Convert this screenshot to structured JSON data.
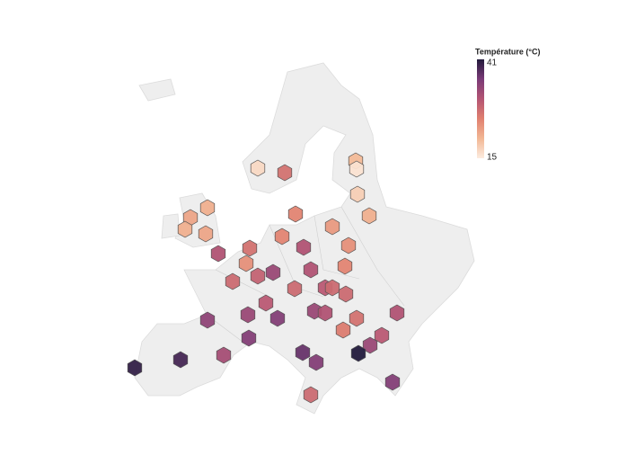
{
  "legend": {
    "title": "Température (°C)",
    "min": 15,
    "max": 41,
    "colors": [
      "#fcece0",
      "#f2b794",
      "#e0806f",
      "#b45473",
      "#7a3a77",
      "#221a3c"
    ]
  },
  "points": {
    "values": [
      17,
      27,
      20,
      16,
      18,
      21,
      21,
      22,
      21,
      22,
      25,
      23,
      25,
      24,
      27,
      31,
      31,
      24,
      25,
      29,
      33,
      31,
      28,
      28,
      30,
      28,
      28,
      30,
      34,
      33,
      35,
      33,
      31,
      27,
      31,
      26,
      30,
      35,
      33,
      32,
      39,
      40,
      37,
      35,
      41,
      35,
      28
    ]
  }
}
